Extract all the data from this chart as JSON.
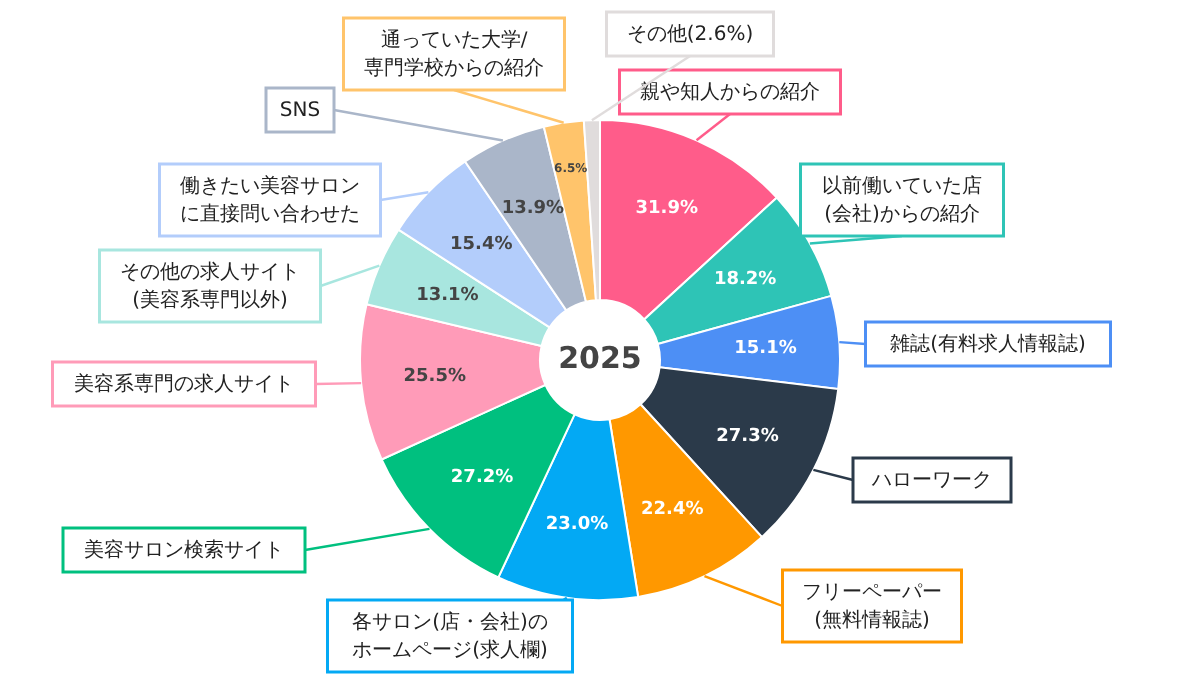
{
  "chart_data": {
    "type": "donut",
    "title": "2025",
    "categories": [
      "親や知人からの紹介",
      "以前働いていた店(会社)からの紹介",
      "雑誌(有料求人情報誌)",
      "ハローワーク",
      "フリーペーパー(無料情報誌)",
      "各サロン(店・会社)のホームページ(求人欄)",
      "美容サロン検索サイト",
      "美容系専門の求人サイト",
      "その他の求人サイト(美容系専門以外)",
      "働きたい美容サロンに直接問い合わせた",
      "SNS",
      "通っていた大学/専門学校からの紹介",
      "その他(2.6%)"
    ],
    "values": [
      31.9,
      18.2,
      15.1,
      27.3,
      22.4,
      23.0,
      27.2,
      25.5,
      13.1,
      15.4,
      13.9,
      6.5,
      2.6
    ],
    "value_labels": [
      "31.9%",
      "18.2%",
      "15.1%",
      "27.3%",
      "22.4%",
      "23.0%",
      "27.2%",
      "25.5%",
      "13.1%",
      "15.4%",
      "13.9%",
      "6.5%",
      null
    ],
    "colors": [
      "#ff5c8a",
      "#2ec4b6",
      "#4d8ff5",
      "#2b3a4a",
      "#ff9800",
      "#03a9f4",
      "#00c07f",
      "#ff9bb8",
      "#a8e6df",
      "#b3cdfb",
      "#aab6c9",
      "#ffc46b",
      "#e0dcdc"
    ]
  }
}
